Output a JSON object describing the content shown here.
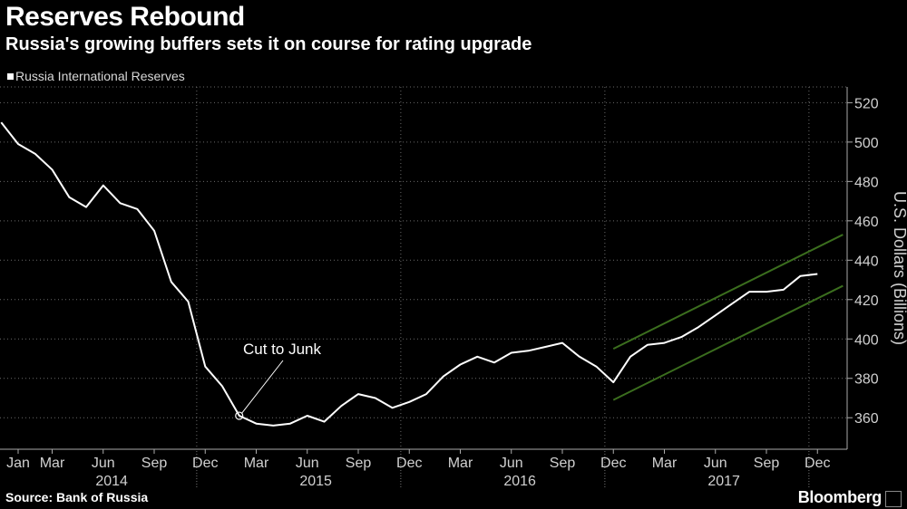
{
  "title": "Reserves Rebound",
  "subtitle": "Russia's growing buffers sets it on course for rating upgrade",
  "source": "Source: Bank of Russia",
  "brand": "Bloomberg",
  "colors": {
    "background": "#000000",
    "line": "#ffffff",
    "channel": "#3b6e1e",
    "grid": "#6a6a6a"
  },
  "chart_data": {
    "type": "line",
    "title": "Reserves Rebound",
    "subtitle": "Russia's growing buffers sets it on course for rating upgrade",
    "ylabel": "U.S. Dollars (Billions)",
    "ylim": [
      344,
      528
    ],
    "yticks": [
      360,
      380,
      400,
      420,
      440,
      460,
      480,
      500,
      520
    ],
    "y_axis_side": "right",
    "grid": true,
    "legend_position": "top-left",
    "x_tick_labels": [
      {
        "label": "Jan",
        "month": 0
      },
      {
        "label": "Mar",
        "month": 2
      },
      {
        "label": "Jun",
        "month": 5
      },
      {
        "label": "Sep",
        "month": 8
      },
      {
        "label": "Dec",
        "month": 11
      },
      {
        "label": "Mar",
        "month": 14
      },
      {
        "label": "Jun",
        "month": 17
      },
      {
        "label": "Sep",
        "month": 20
      },
      {
        "label": "Dec",
        "month": 23
      },
      {
        "label": "Mar",
        "month": 26
      },
      {
        "label": "Jun",
        "month": 29
      },
      {
        "label": "Sep",
        "month": 32
      },
      {
        "label": "Dec",
        "month": 35
      },
      {
        "label": "Mar",
        "month": 38
      },
      {
        "label": "Jun",
        "month": 41
      },
      {
        "label": "Sep",
        "month": 44
      },
      {
        "label": "Dec",
        "month": 47
      }
    ],
    "year_labels": [
      {
        "label": "2014",
        "center_month": 5.5
      },
      {
        "label": "2015",
        "center_month": 17.5
      },
      {
        "label": "2016",
        "center_month": 29.5
      },
      {
        "label": "2017",
        "center_month": 41.5
      }
    ],
    "series": [
      {
        "name": "Russia International Reserves",
        "color": "#ffffff",
        "points": [
          [
            -1,
            510
          ],
          [
            0,
            499
          ],
          [
            1,
            494
          ],
          [
            2,
            486
          ],
          [
            3,
            472
          ],
          [
            4,
            467
          ],
          [
            5,
            478
          ],
          [
            6,
            469
          ],
          [
            7,
            466
          ],
          [
            8,
            455
          ],
          [
            9,
            429
          ],
          [
            10,
            419
          ],
          [
            11,
            386
          ],
          [
            12,
            376
          ],
          [
            13,
            361
          ],
          [
            14,
            357
          ],
          [
            15,
            356
          ],
          [
            16,
            357
          ],
          [
            17,
            361
          ],
          [
            18,
            358
          ],
          [
            19,
            366
          ],
          [
            20,
            372
          ],
          [
            21,
            370
          ],
          [
            22,
            365
          ],
          [
            23,
            368
          ],
          [
            24,
            372
          ],
          [
            25,
            381
          ],
          [
            26,
            387
          ],
          [
            27,
            391
          ],
          [
            28,
            388
          ],
          [
            29,
            393
          ],
          [
            30,
            394
          ],
          [
            31,
            396
          ],
          [
            32,
            398
          ],
          [
            33,
            391
          ],
          [
            34,
            386
          ],
          [
            35,
            378
          ],
          [
            36,
            391
          ],
          [
            37,
            397
          ],
          [
            38,
            398
          ],
          [
            39,
            401
          ],
          [
            40,
            406
          ],
          [
            41,
            412
          ],
          [
            42,
            418
          ],
          [
            43,
            424
          ],
          [
            44,
            424
          ],
          [
            45,
            425
          ],
          [
            46,
            432
          ],
          [
            47,
            433
          ]
        ]
      }
    ],
    "channel": {
      "upper": [
        [
          35,
          395
        ],
        [
          48.5,
          453
        ]
      ],
      "lower": [
        [
          35,
          369
        ],
        [
          48.5,
          427
        ]
      ]
    },
    "annotations": [
      {
        "text": "Cut to Junk",
        "point": [
          13,
          361
        ]
      }
    ]
  }
}
